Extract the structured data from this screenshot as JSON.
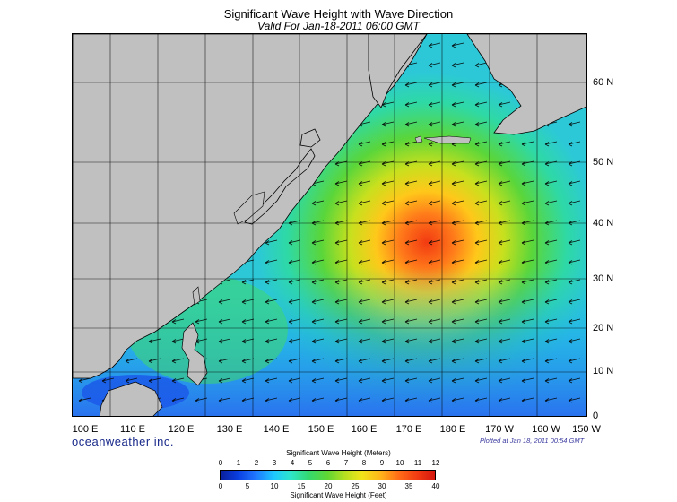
{
  "title": "Significant Wave Height with Wave Direction",
  "subtitle": "Valid For Jan-18-2011 06:00 GMT",
  "lon_labels": [
    "100 E",
    "110 E",
    "120 E",
    "130 E",
    "140 E",
    "150 E",
    "160 E",
    "170 E",
    "180 E",
    "170 W",
    "160 W",
    "150 W"
  ],
  "lat_labels": [
    "60 N",
    "50 N",
    "40 N",
    "30 N",
    "20 N",
    "10 N",
    "0"
  ],
  "brand": "oceanweather inc.",
  "plotted": "Plotted at Jan 18, 2011 00:54 GMT",
  "colorbar": {
    "title_top": "Significant Wave Height (Meters)",
    "title_bottom": "Significant Wave Height (Feet)",
    "meters": [
      "0",
      "1",
      "2",
      "3",
      "4",
      "5",
      "6",
      "7",
      "8",
      "9",
      "10",
      "11",
      "12"
    ],
    "feet": [
      "0",
      "5",
      "10",
      "15",
      "20",
      "25",
      "30",
      "35",
      "40"
    ]
  },
  "colors": {
    "land": "#c0c0c0",
    "water_low": "#0a3ee0",
    "water_mid": "#33d970",
    "water_high": "#f23a12"
  }
}
